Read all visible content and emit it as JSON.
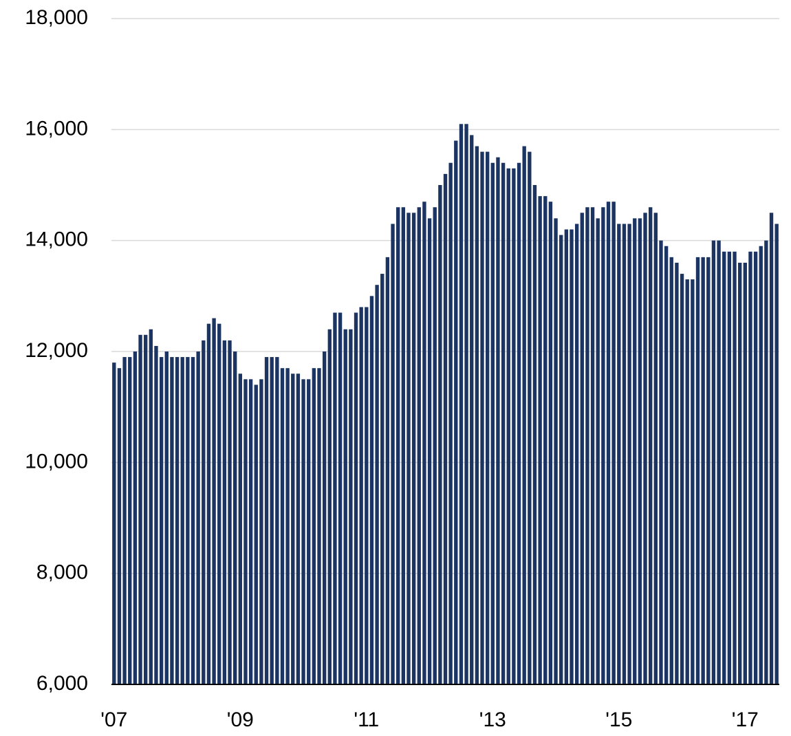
{
  "chart_data": {
    "type": "bar",
    "categories": [
      "'07",
      null,
      null,
      null,
      null,
      null,
      null,
      null,
      null,
      null,
      null,
      null,
      null,
      null,
      null,
      null,
      null,
      null,
      null,
      null,
      null,
      null,
      null,
      null,
      "'09",
      null,
      null,
      null,
      null,
      null,
      null,
      null,
      null,
      null,
      null,
      null,
      null,
      null,
      null,
      null,
      null,
      null,
      null,
      null,
      null,
      null,
      null,
      null,
      "'11",
      null,
      null,
      null,
      null,
      null,
      null,
      null,
      null,
      null,
      null,
      null,
      null,
      null,
      null,
      null,
      null,
      null,
      null,
      null,
      null,
      null,
      null,
      null,
      "'13",
      null,
      null,
      null,
      null,
      null,
      null,
      null,
      null,
      null,
      null,
      null,
      null,
      null,
      null,
      null,
      null,
      null,
      null,
      null,
      null,
      null,
      null,
      null,
      "'15",
      null,
      null,
      null,
      null,
      null,
      null,
      null,
      null,
      null,
      null,
      null,
      null,
      null,
      null,
      null,
      null,
      null,
      null,
      null,
      null,
      null,
      null,
      null,
      "'17",
      null,
      null,
      null,
      null,
      null,
      null
    ],
    "values": [
      11800,
      11700,
      11900,
      11900,
      12000,
      12300,
      12300,
      12400,
      12100,
      11900,
      12000,
      11900,
      11900,
      11900,
      11900,
      11900,
      12000,
      12200,
      12500,
      12600,
      12500,
      12200,
      12200,
      12000,
      11600,
      11500,
      11500,
      11400,
      11500,
      11900,
      11900,
      11900,
      11700,
      11700,
      11600,
      11600,
      11500,
      11500,
      11700,
      11700,
      12000,
      12400,
      12700,
      12700,
      12400,
      12400,
      12700,
      12800,
      12800,
      13000,
      13200,
      13400,
      13700,
      14300,
      14600,
      14600,
      14500,
      14500,
      14600,
      14700,
      14400,
      14600,
      15000,
      15200,
      15400,
      15800,
      16100,
      16100,
      15900,
      15700,
      15600,
      15600,
      15400,
      15500,
      15400,
      15300,
      15300,
      15400,
      15700,
      15600,
      15000,
      14800,
      14800,
      14700,
      14400,
      14100,
      14200,
      14200,
      14300,
      14500,
      14600,
      14600,
      14400,
      14600,
      14700,
      14700,
      14300,
      14300,
      14300,
      14400,
      14400,
      14500,
      14600,
      14500,
      14000,
      13900,
      13700,
      13600,
      13400,
      13300,
      13300,
      13700,
      13700,
      13700,
      14000,
      14000,
      13800,
      13800,
      13800,
      13600,
      13600,
      13800,
      13800,
      13900,
      14000,
      14500,
      14300
    ],
    "color": "#1c3461",
    "ylim": [
      6000,
      18000
    ],
    "yticks": [
      {
        "value": 6000,
        "label": "6,000"
      },
      {
        "value": 8000,
        "label": "8,000"
      },
      {
        "value": 10000,
        "label": "10,000"
      },
      {
        "value": 12000,
        "label": "12,000"
      },
      {
        "value": 14000,
        "label": "14,000"
      },
      {
        "value": 16000,
        "label": "16,000"
      },
      {
        "value": 18000,
        "label": "18,000"
      }
    ],
    "grid": true
  }
}
